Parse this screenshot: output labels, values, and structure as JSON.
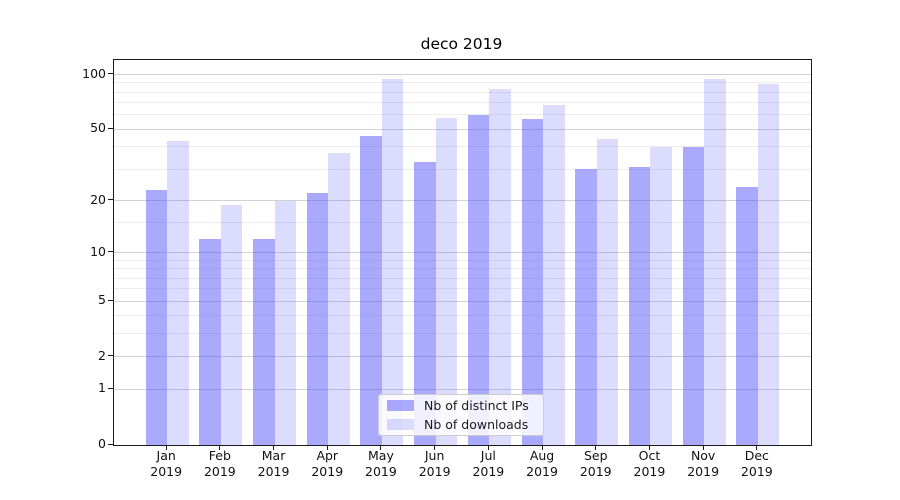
{
  "chart_data": {
    "type": "bar",
    "title": "deco 2019",
    "categories": [
      "Jan",
      "Feb",
      "Mar",
      "Apr",
      "May",
      "Jun",
      "Jul",
      "Aug",
      "Sep",
      "Oct",
      "Nov",
      "Dec"
    ],
    "year_label": "2019",
    "series": [
      {
        "name": "Nb of distinct IPs",
        "values": [
          23,
          12,
          12,
          22,
          46,
          33,
          60,
          57,
          30,
          31,
          40,
          24
        ]
      },
      {
        "name": "Nb of downloads",
        "values": [
          43,
          19,
          20,
          37,
          95,
          58,
          83,
          68,
          44,
          40,
          95,
          89
        ]
      }
    ],
    "xlabel": "",
    "ylabel": "",
    "yscale": "log(v+1)",
    "ylim": [
      0,
      120
    ],
    "yticks": [
      0,
      1,
      2,
      5,
      10,
      20,
      50,
      100
    ],
    "yticks_minor": [
      3,
      4,
      6,
      7,
      8,
      9,
      15,
      30,
      40,
      60,
      70,
      80,
      90
    ],
    "grid": true,
    "legend_position": "lower center"
  },
  "colors": {
    "bar_base": "#5052FA",
    "alpha_distinct_ips": 0.49,
    "alpha_downloads": 0.2,
    "grid_major": "#d2d2d2",
    "grid_minor": "#ececec",
    "axis": "#1a1a1a",
    "text": "#111111"
  }
}
